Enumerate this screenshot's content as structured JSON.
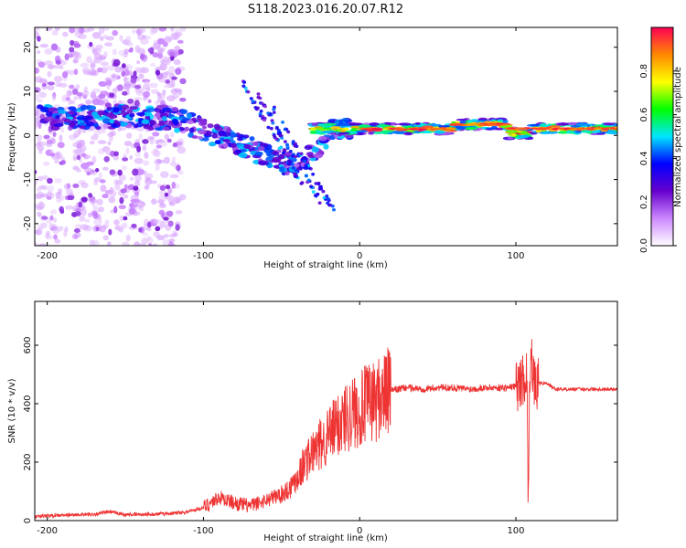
{
  "figure": {
    "title": "S118.2023.016.20.07.R12"
  },
  "chart_data": [
    {
      "type": "heatmap",
      "xlabel": "Height of straight line (km)",
      "ylabel": "Frequency (Hz)",
      "xlim": [
        -208,
        165
      ],
      "ylim": [
        -25,
        24.5
      ],
      "x_ticks": [
        -200,
        -100,
        0,
        100
      ],
      "x_tick_labels": [
        "-200",
        "-100",
        "0",
        "100"
      ],
      "y_ticks": [
        -20,
        -10,
        0,
        10,
        20
      ],
      "y_tick_labels": [
        "-20",
        "-10",
        "0",
        "10",
        "20"
      ],
      "colorbar": {
        "label": "Normalized spectral amplitude",
        "range": [
          0,
          1
        ],
        "ticks": [
          0,
          0.2,
          0.4,
          0.6,
          0.8
        ],
        "tick_labels": [
          "0.0",
          "0.2",
          "0.4",
          "0.6",
          "0.8"
        ],
        "colormap": [
          "#ffffff",
          "#cc88ff",
          "#6600cc",
          "#0000ff",
          "#00e5ff",
          "#00ff00",
          "#ffff00",
          "#ff8800",
          "#ff0055"
        ]
      },
      "grid": false
    },
    {
      "type": "line",
      "xlabel": "Height of straight line (km)",
      "ylabel": "SNR (10 * v/v)",
      "xlim": [
        -208,
        165
      ],
      "ylim": [
        0,
        750
      ],
      "x_ticks": [
        -200,
        -100,
        0,
        100
      ],
      "x_tick_labels": [
        "-200",
        "-100",
        "0",
        "100"
      ],
      "y_ticks": [
        0,
        200,
        400,
        600
      ],
      "y_tick_labels": [
        "0",
        "200",
        "400",
        "600"
      ],
      "line_color": "#ee3333",
      "grid": false,
      "series": [
        {
          "x": [
            -208,
            -190,
            -170,
            -160,
            -150,
            -130,
            -120,
            -110,
            -100,
            -90,
            -80,
            -70,
            -60,
            -50,
            -45,
            -40,
            -35,
            -30,
            -25,
            -20,
            -15,
            -10,
            -5,
            0,
            5,
            10,
            15,
            20,
            30,
            40,
            50,
            60,
            70,
            80,
            90,
            95,
            100,
            103,
            105,
            107,
            108,
            109,
            110,
            111,
            112,
            115,
            120,
            125,
            130,
            140,
            150,
            165
          ],
          "y": [
            15,
            18,
            22,
            30,
            20,
            22,
            25,
            30,
            45,
            80,
            60,
            50,
            70,
            90,
            110,
            150,
            200,
            230,
            260,
            290,
            320,
            350,
            370,
            380,
            400,
            410,
            430,
            445,
            455,
            450,
            455,
            455,
            450,
            455,
            455,
            455,
            460,
            470,
            490,
            500,
            60,
            520,
            620,
            480,
            455,
            470,
            470,
            450,
            450,
            450,
            450,
            450
          ]
        }
      ]
    }
  ]
}
